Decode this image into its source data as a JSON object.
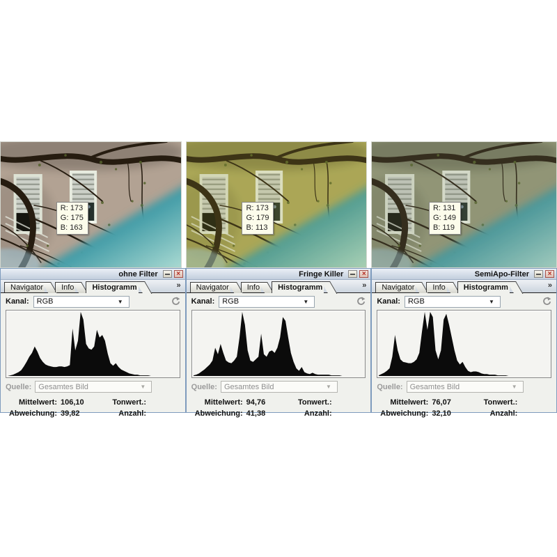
{
  "panels": [
    {
      "title": "ohne Filter",
      "tabs": [
        "Navigator",
        "Info",
        "Histogramm"
      ],
      "overflow_label": "»",
      "kanal": {
        "label": "Kanal:",
        "value": "RGB"
      },
      "quelle": {
        "label": "Quelle:",
        "value": "Gesamtes Bild"
      },
      "stats": {
        "mittelwert_label": "Mittelwert:",
        "mittelwert_value": "106,10",
        "tonwert_label": "Tonwert.:",
        "tonwert_value": "",
        "abweichung_label": "Abweichung:",
        "abweichung_value": "39,82",
        "anzahl_label": "Anzahl:",
        "anzahl_value": ""
      },
      "tooltip": {
        "r": "R: 173",
        "g": "G: 175",
        "b": "B: 163"
      },
      "photo": {
        "wall_color": "#b2a293",
        "tint_color": "#b0a090",
        "tint_opacity": "0"
      },
      "histogram": [
        0,
        1,
        2,
        4,
        6,
        9,
        15,
        22,
        30,
        36,
        46,
        38,
        28,
        22,
        18,
        16,
        15,
        14,
        14,
        15,
        15,
        14,
        15,
        17,
        74,
        40,
        55,
        100,
        88,
        50,
        43,
        41,
        46,
        72,
        60,
        64,
        55,
        35,
        20,
        16,
        20,
        14,
        10,
        8,
        6,
        4,
        3,
        2,
        2,
        1,
        1,
        1,
        1,
        0,
        0,
        0,
        0,
        0,
        0,
        0,
        0,
        0,
        0,
        0
      ]
    },
    {
      "title": "Fringe Killer",
      "tabs": [
        "Navigator",
        "Info",
        "Histogramm"
      ],
      "overflow_label": "»",
      "kanal": {
        "label": "Kanal:",
        "value": "RGB"
      },
      "quelle": {
        "label": "Quelle:",
        "value": "Gesamtes Bild"
      },
      "stats": {
        "mittelwert_label": "Mittelwert:",
        "mittelwert_value": "94,76",
        "tonwert_label": "Tonwert.:",
        "tonwert_value": "",
        "abweichung_label": "Abweichung:",
        "abweichung_value": "41,38",
        "anzahl_label": "Anzahl:",
        "anzahl_value": ""
      },
      "tooltip": {
        "r": "R: 173",
        "g": "G: 179",
        "b": "B: 113"
      },
      "photo": {
        "wall_color": "#aca75f",
        "tint_color": "#a8a432",
        "tint_opacity": "0.18"
      },
      "histogram": [
        1,
        2,
        4,
        7,
        10,
        14,
        18,
        24,
        44,
        34,
        50,
        36,
        24,
        21,
        20,
        24,
        30,
        60,
        100,
        80,
        40,
        24,
        22,
        26,
        30,
        66,
        34,
        30,
        38,
        40,
        36,
        44,
        60,
        92,
        86,
        60,
        36,
        22,
        12,
        8,
        14,
        6,
        4,
        3,
        5,
        3,
        2,
        2,
        2,
        2,
        2,
        1,
        1,
        1,
        1,
        0,
        0,
        0,
        0,
        0,
        0,
        0,
        0,
        0
      ]
    },
    {
      "title": "SemiApo-Filter",
      "tabs": [
        "Navigator",
        "Info",
        "Histogramm"
      ],
      "overflow_label": "»",
      "kanal": {
        "label": "Kanal:",
        "value": "RGB"
      },
      "quelle": {
        "label": "Quelle:",
        "value": "Gesamtes Bild"
      },
      "stats": {
        "mittelwert_label": "Mittelwert:",
        "mittelwert_value": "76,07",
        "tonwert_label": "Tonwert.:",
        "tonwert_value": "",
        "abweichung_label": "Abweichung:",
        "abweichung_value": "32,10",
        "anzahl_label": "Anzahl:",
        "anzahl_value": ""
      },
      "tooltip": {
        "r": "R: 131",
        "g": "G: 149",
        "b": "B: 119"
      },
      "photo": {
        "wall_color": "#96997c",
        "tint_color": "#78855e",
        "tint_opacity": "0.18"
      },
      "histogram": [
        1,
        3,
        5,
        8,
        12,
        30,
        64,
        40,
        26,
        22,
        21,
        20,
        20,
        22,
        26,
        36,
        70,
        100,
        72,
        100,
        92,
        40,
        26,
        40,
        88,
        97,
        80,
        60,
        40,
        24,
        18,
        22,
        14,
        8,
        6,
        7,
        7,
        6,
        4,
        3,
        3,
        2,
        2,
        2,
        1,
        1,
        1,
        1,
        0,
        0,
        0,
        0,
        0,
        0,
        0,
        0,
        0,
        0,
        0,
        0,
        0,
        0,
        0,
        0
      ]
    }
  ]
}
